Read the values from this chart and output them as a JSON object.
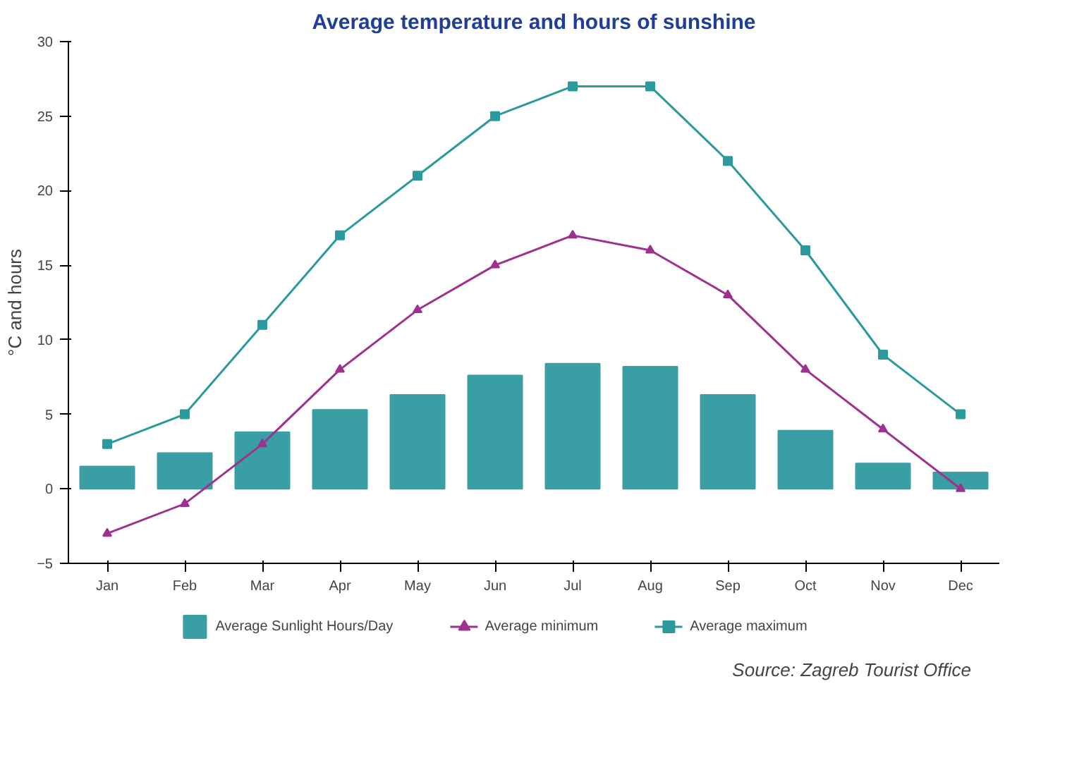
{
  "chart_data": {
    "type": "bar",
    "title": "Average temperature and hours of sunshine",
    "ylabel": "°C and hours",
    "categories": [
      "Jan",
      "Feb",
      "Mar",
      "Apr",
      "May",
      "Jun",
      "Jul",
      "Aug",
      "Sep",
      "Oct",
      "Nov",
      "Dec"
    ],
    "series": [
      {
        "name": "Average Sunlight Hours/Day",
        "color": "#3a9ea5",
        "values": [
          1.5,
          2.4,
          3.8,
          5.3,
          6.3,
          7.6,
          8.4,
          8.2,
          6.3,
          3.9,
          1.7,
          1.1
        ]
      },
      {
        "name": "Average minimum",
        "type": "line",
        "color": "#a0308f",
        "marker": "triangle",
        "values": [
          -3,
          -1,
          3,
          8,
          12,
          15,
          17,
          16,
          13,
          8,
          4,
          0
        ]
      },
      {
        "name": "Average maximum",
        "type": "line",
        "color": "#2a9a9c",
        "marker": "square",
        "values": [
          3,
          5,
          11,
          17,
          21,
          25,
          27,
          27,
          22,
          16,
          9,
          5
        ]
      }
    ],
    "ylim": [
      -5,
      30
    ],
    "yticks": [
      -5,
      0,
      5,
      10,
      15,
      20,
      25,
      30
    ],
    "grid": false,
    "legend": "bottom",
    "annotations": [
      "Source: Zagreb Tourist Office"
    ]
  }
}
